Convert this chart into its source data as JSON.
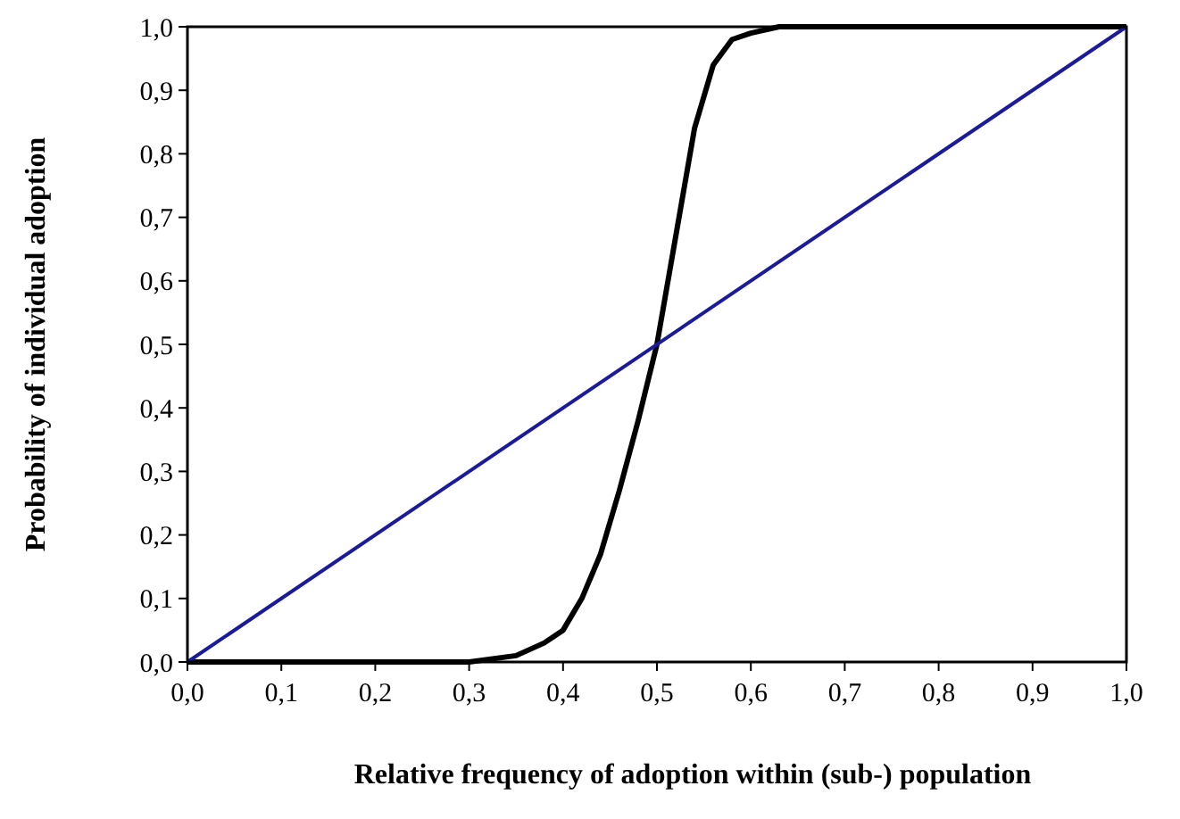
{
  "chart_data": {
    "type": "line",
    "xlabel": "Relative frequency of adoption within (sub-) population",
    "ylabel": "Probability of individual adoption",
    "xlim": [
      0,
      1
    ],
    "ylim": [
      0,
      1
    ],
    "xticks": [
      {
        "value": 0,
        "label": "0,0"
      },
      {
        "value": 0.1,
        "label": "0,1"
      },
      {
        "value": 0.2,
        "label": "0,2"
      },
      {
        "value": 0.3,
        "label": "0,3"
      },
      {
        "value": 0.4,
        "label": "0,4"
      },
      {
        "value": 0.5,
        "label": "0,5"
      },
      {
        "value": 0.6,
        "label": "0,6"
      },
      {
        "value": 0.7,
        "label": "0,7"
      },
      {
        "value": 0.8,
        "label": "0,8"
      },
      {
        "value": 0.9,
        "label": "0,9"
      },
      {
        "value": 1,
        "label": "1,0"
      }
    ],
    "yticks": [
      {
        "value": 0,
        "label": "0,0"
      },
      {
        "value": 0.1,
        "label": "0,1"
      },
      {
        "value": 0.2,
        "label": "0,2"
      },
      {
        "value": 0.3,
        "label": "0,3"
      },
      {
        "value": 0.4,
        "label": "0,4"
      },
      {
        "value": 0.5,
        "label": "0,5"
      },
      {
        "value": 0.6,
        "label": "0,6"
      },
      {
        "value": 0.7,
        "label": "0,7"
      },
      {
        "value": 0.8,
        "label": "0,8"
      },
      {
        "value": 0.9,
        "label": "0,9"
      },
      {
        "value": 1,
        "label": "1,0"
      }
    ],
    "grid": false,
    "marker": "none",
    "line_style": "solid",
    "series": [
      {
        "color": "#000000",
        "x": [
          0,
          0.2,
          0.3,
          0.35,
          0.38,
          0.4,
          0.42,
          0.44,
          0.46,
          0.48,
          0.5,
          0.52,
          0.54,
          0.56,
          0.58,
          0.6,
          0.63,
          0.7,
          1
        ],
        "values": [
          0,
          0,
          0,
          0.01,
          0.03,
          0.05,
          0.1,
          0.17,
          0.27,
          0.38,
          0.5,
          0.67,
          0.84,
          0.94,
          0.98,
          0.99,
          1,
          1,
          1
        ]
      },
      {
        "color": "#1a1a9c",
        "x": [
          0,
          1
        ],
        "values": [
          0,
          1
        ]
      }
    ]
  }
}
